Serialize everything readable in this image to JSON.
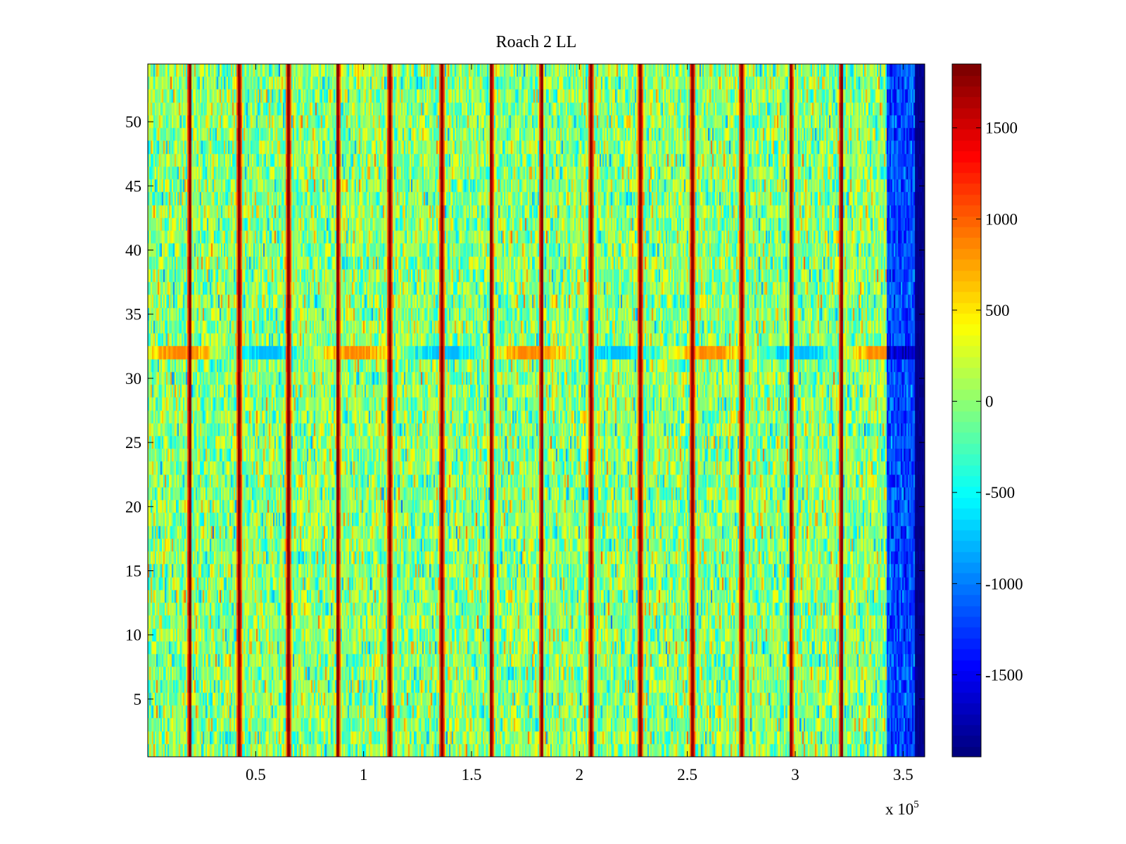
{
  "chart_data": {
    "type": "heatmap",
    "title": "Roach 2 LL",
    "xlabel": "",
    "ylabel": "",
    "x_multiplier": "x 10",
    "x_multiplier_exp": "5",
    "xlim": [
      0,
      360000
    ],
    "ylim": [
      0.5,
      54.5
    ],
    "xticks": [
      {
        "value": 50000,
        "label": "0.5"
      },
      {
        "value": 100000,
        "label": "1"
      },
      {
        "value": 150000,
        "label": "1.5"
      },
      {
        "value": 200000,
        "label": "2"
      },
      {
        "value": 250000,
        "label": "2.5"
      },
      {
        "value": 300000,
        "label": "3"
      },
      {
        "value": 350000,
        "label": "3.5"
      }
    ],
    "yticks": [
      {
        "value": 5,
        "label": "5"
      },
      {
        "value": 10,
        "label": "10"
      },
      {
        "value": 15,
        "label": "15"
      },
      {
        "value": 20,
        "label": "20"
      },
      {
        "value": 25,
        "label": "25"
      },
      {
        "value": 30,
        "label": "30"
      },
      {
        "value": 35,
        "label": "35"
      },
      {
        "value": 40,
        "label": "40"
      },
      {
        "value": 45,
        "label": "45"
      },
      {
        "value": 50,
        "label": "50"
      }
    ],
    "colormap": "jet",
    "clim": [
      -1950,
      1850
    ],
    "colorbar_ticks": [
      {
        "value": 1500,
        "label": "1500"
      },
      {
        "value": 1000,
        "label": "1000"
      },
      {
        "value": 500,
        "label": "500"
      },
      {
        "value": 0,
        "label": "0"
      },
      {
        "value": -500,
        "label": "-500"
      },
      {
        "value": -1000,
        "label": "-1000"
      },
      {
        "value": -1500,
        "label": "-1500"
      }
    ],
    "rows": 54,
    "background_level": 0,
    "background_spread": 350,
    "spike_columns_x": [
      19000,
      42000,
      65000,
      88000,
      112000,
      136000,
      159000,
      182000,
      205000,
      228000,
      252000,
      275000,
      298000,
      321000
    ],
    "spike_level": 1850,
    "highlight_row": {
      "y": 32,
      "level_range": [
        -800,
        900
      ]
    },
    "low_band": {
      "x_range": [
        342000,
        355000
      ],
      "level": -1200
    },
    "edge_band": {
      "x_range": [
        355000,
        360000
      ],
      "level": -1900
    }
  }
}
